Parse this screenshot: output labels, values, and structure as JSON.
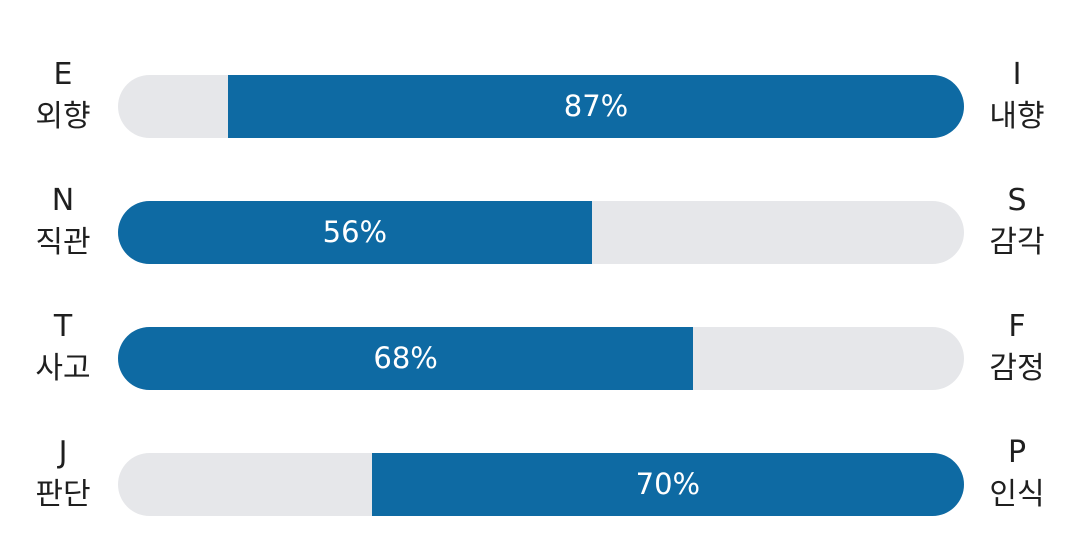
{
  "chart_data": {
    "type": "bar",
    "orientation": "horizontal",
    "colors": {
      "fill": "#0e6aa3",
      "track": "#e6e7ea",
      "text": "#1f1f1f",
      "label": "#ffffff"
    },
    "rows": [
      {
        "left_letter": "E",
        "left_word": "외향",
        "right_letter": "I",
        "right_word": "내향",
        "value": 87,
        "value_label": "87%",
        "side": "right"
      },
      {
        "left_letter": "N",
        "left_word": "직관",
        "right_letter": "S",
        "right_word": "감각",
        "value": 56,
        "value_label": "56%",
        "side": "left"
      },
      {
        "left_letter": "T",
        "left_word": "사고",
        "right_letter": "F",
        "right_word": "감정",
        "value": 68,
        "value_label": "68%",
        "side": "left"
      },
      {
        "left_letter": "J",
        "left_word": "판단",
        "right_letter": "P",
        "right_word": "인식",
        "value": 70,
        "value_label": "70%",
        "side": "right"
      }
    ]
  }
}
